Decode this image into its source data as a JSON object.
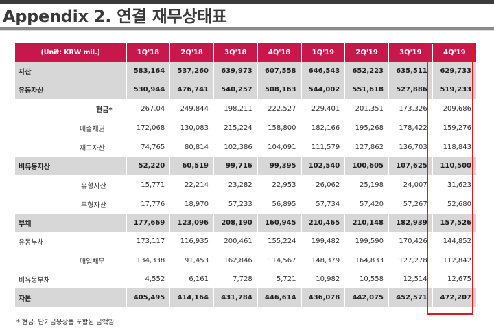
{
  "title": "Appendix 2. 연결 재무상태표",
  "table": {
    "unit_label": "(Unit: KRW mil.)",
    "columns": [
      "1Q'18",
      "2Q'18",
      "3Q'18",
      "4Q'18",
      "1Q'19",
      "2Q'19",
      "3Q'19",
      "4Q'19"
    ],
    "rows": [
      {
        "label": "자산",
        "values": [
          "583,164",
          "537,260",
          "639,973",
          "607,558",
          "646,543",
          "652,223",
          "635,511",
          "629,733"
        ]
      },
      {
        "label": "유동자산",
        "values": [
          "530,944",
          "476,741",
          "540,257",
          "508,163",
          "544,002",
          "551,618",
          "527,886",
          "519,233"
        ]
      },
      {
        "label": "현금*",
        "values": [
          "267,04",
          "249,844",
          "198,211",
          "222,527",
          "229,401",
          "201,351",
          "173,326",
          "209,686"
        ]
      },
      {
        "label": "매출채권",
        "values": [
          "172,068",
          "130,083",
          "215,224",
          "158,800",
          "182,166",
          "195,268",
          "178,422",
          "159,276"
        ]
      },
      {
        "label": "재고자산",
        "values": [
          "74,765",
          "80,814",
          "102,386",
          "104,091",
          "111,579",
          "127,862",
          "136,703",
          "118,843"
        ]
      },
      {
        "label": "비유동자산",
        "values": [
          "52,220",
          "60,519",
          "99,716",
          "99,395",
          "102,540",
          "100,605",
          "107,625",
          "110,500"
        ]
      },
      {
        "label": "유형자산",
        "values": [
          "15,771",
          "22,214",
          "23,282",
          "22,953",
          "26,062",
          "25,198",
          "24,007",
          "31,623"
        ]
      },
      {
        "label": "무형자산",
        "values": [
          "17,776",
          "18,970",
          "57,233",
          "56,895",
          "57,734",
          "57,420",
          "57,267",
          "52,680"
        ]
      },
      {
        "label": "부채",
        "values": [
          "177,669",
          "123,096",
          "208,190",
          "160,945",
          "210,465",
          "210,148",
          "182,939",
          "157,526"
        ]
      },
      {
        "label": "유동부채",
        "values": [
          "173,117",
          "116,935",
          "200,461",
          "155,224",
          "199,482",
          "199,590",
          "170,426",
          "144,852"
        ]
      },
      {
        "label": "매입채무",
        "values": [
          "134,338",
          "91,453",
          "162,846",
          "114,567",
          "148,379",
          "164,833",
          "127,278",
          "112,842"
        ]
      },
      {
        "label": "비유동부채",
        "values": [
          "4,552",
          "6,161",
          "7,728",
          "5,721",
          "10,982",
          "10,558",
          "12,514",
          "12,675"
        ]
      },
      {
        "label": "자본",
        "values": [
          "405,495",
          "414,164",
          "431,784",
          "446,614",
          "436,078",
          "442,075",
          "452,571",
          "472,207"
        ]
      }
    ]
  },
  "footnote": "* 현금: 단기금융상품 포함된 금액임.",
  "colors": {
    "header_bg": "#c8174a",
    "highlight_border": "#e4161e",
    "major_row_bg": "#d7d7d7"
  }
}
